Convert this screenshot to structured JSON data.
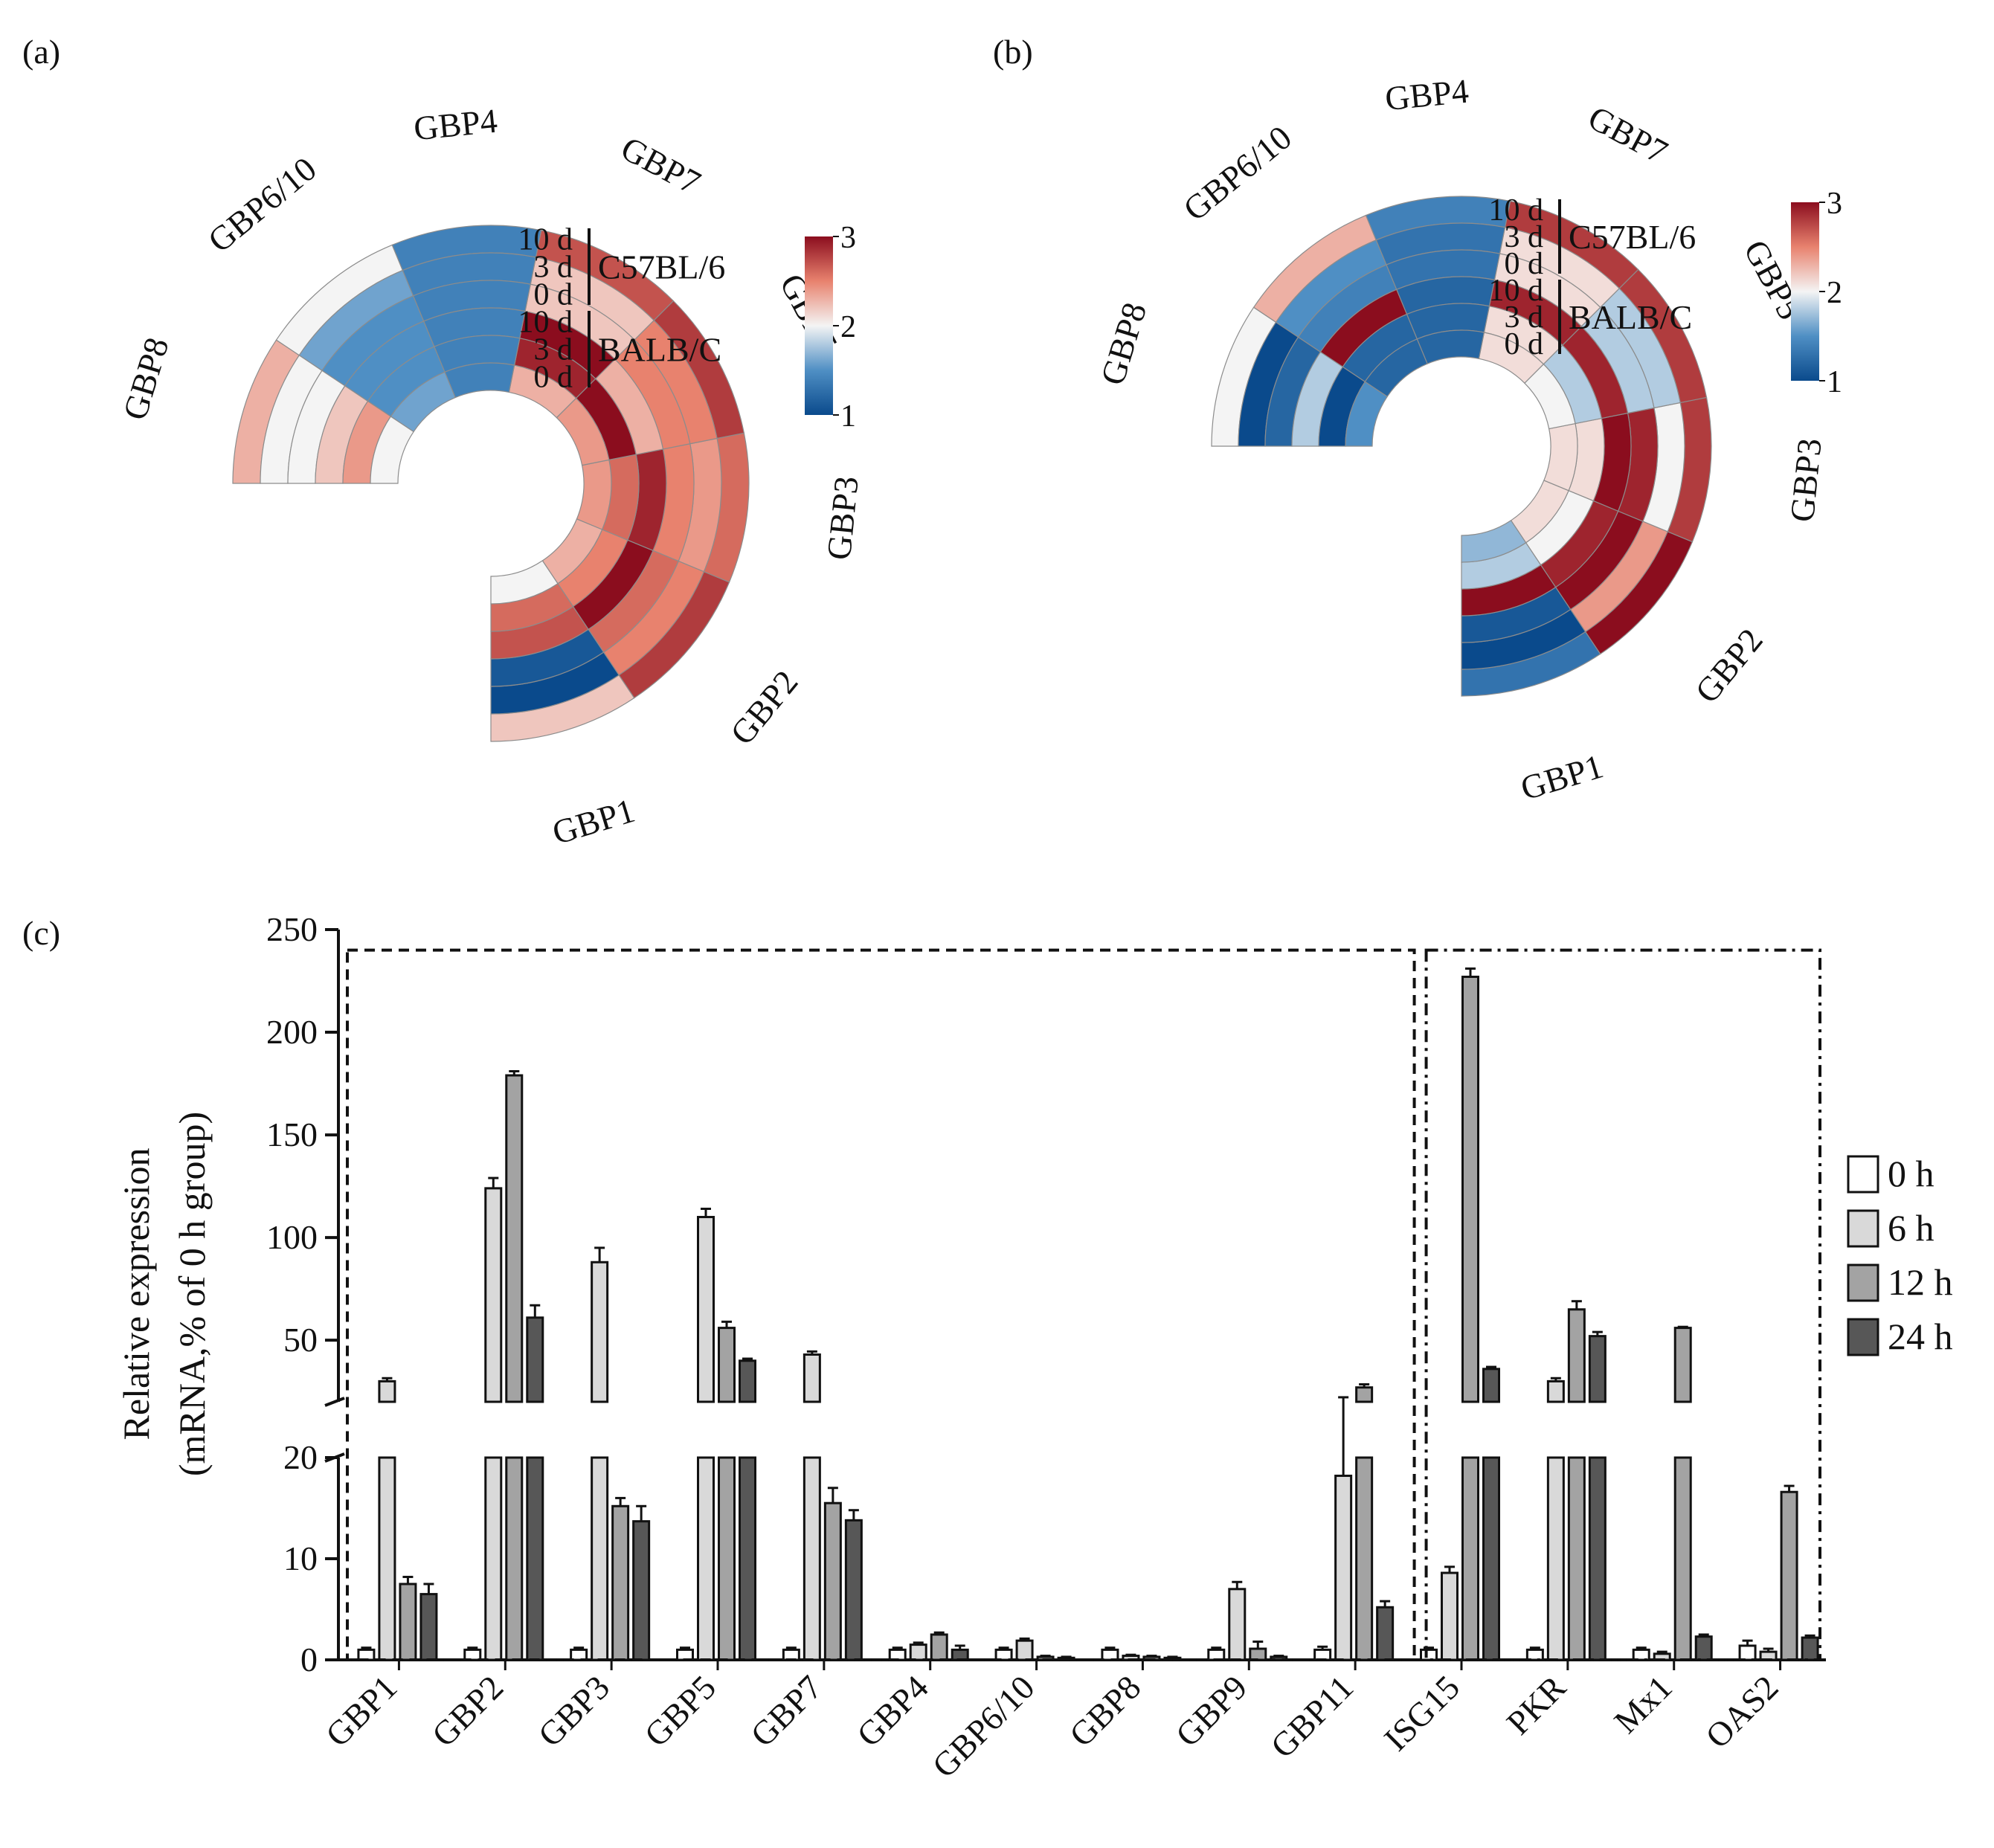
{
  "panels": {
    "a": {
      "label": "(a)"
    },
    "b": {
      "label": "(b)"
    },
    "c": {
      "label": "(c)"
    }
  },
  "colors": {
    "scale_low": "#0a4a8c",
    "scale_mid": "#f4f4f4",
    "scale_high": "#8b0d1e",
    "bar_0h": "#ffffff",
    "bar_6h": "#d9d9d9",
    "bar_12h": "#a3a3a3",
    "bar_24h": "#575757"
  },
  "chart_data": [
    {
      "panel": "a",
      "type": "heatmap",
      "subtype": "circular",
      "title": "",
      "genes": [
        "GBP1",
        "GBP2",
        "GBP3",
        "GBP5",
        "GBP7",
        "GBP4",
        "GBP6/10",
        "GBP8"
      ],
      "rings": [
        "10 d",
        "3 d",
        "0 d",
        "10 d",
        "3 d",
        "0 d"
      ],
      "groups": [
        {
          "name": "C57BL/6",
          "rings": [
            "10 d",
            "3 d",
            "0 d"
          ]
        },
        {
          "name": "BALB/C",
          "rings": [
            "10 d",
            "3 d",
            "0 d"
          ]
        }
      ],
      "values": [
        [
          2.2,
          2.8,
          2.6,
          2.8,
          2.7,
          1.4,
          2.0,
          2.3
        ],
        [
          1.0,
          2.5,
          2.4,
          2.5,
          2.2,
          1.4,
          1.6,
          2.0
        ],
        [
          1.1,
          2.6,
          2.5,
          2.5,
          2.2,
          1.4,
          1.5,
          2.0
        ],
        [
          2.7,
          3.2,
          2.9,
          2.3,
          3.0,
          1.4,
          1.5,
          2.2
        ],
        [
          2.6,
          2.5,
          2.6,
          3.3,
          2.9,
          1.4,
          1.5,
          2.4
        ],
        [
          2.0,
          2.3,
          2.4,
          2.4,
          2.3,
          1.4,
          1.6,
          2.0
        ]
      ],
      "colorbar": {
        "ticks": [
          "1",
          "2",
          "3"
        ],
        "range": [
          1,
          3
        ]
      }
    },
    {
      "panel": "b",
      "type": "heatmap",
      "subtype": "circular",
      "title": "",
      "genes": [
        "GBP1",
        "GBP2",
        "GBP3",
        "GBP5",
        "GBP7",
        "GBP4",
        "GBP6/10",
        "GBP8"
      ],
      "rings": [
        "10 d",
        "3 d",
        "0 d",
        "10 d",
        "3 d",
        "0 d"
      ],
      "groups": [
        {
          "name": "C57BL/6",
          "rings": [
            "10 d",
            "3 d",
            "0 d"
          ]
        },
        {
          "name": "BALB/C",
          "rings": [
            "10 d",
            "3 d",
            "0 d"
          ]
        }
      ],
      "values": [
        [
          1.3,
          3.4,
          2.8,
          2.8,
          2.8,
          1.4,
          2.3,
          2.0
        ],
        [
          1.0,
          2.4,
          2.0,
          1.8,
          2.1,
          1.3,
          1.5,
          1.0
        ],
        [
          1.1,
          3.0,
          2.9,
          1.8,
          2.1,
          1.3,
          1.4,
          1.2
        ],
        [
          3.1,
          2.9,
          3.0,
          2.9,
          2.9,
          1.2,
          3.2,
          1.8
        ],
        [
          1.8,
          2.0,
          2.1,
          1.8,
          2.1,
          1.2,
          1.2,
          1.0
        ],
        [
          1.7,
          2.1,
          2.1,
          2.0,
          2.1,
          1.2,
          1.2,
          1.5
        ]
      ],
      "colorbar": {
        "ticks": [
          "1",
          "2",
          "3"
        ],
        "range": [
          1,
          3
        ]
      }
    },
    {
      "panel": "c",
      "type": "bar",
      "title": "",
      "xlabel": "",
      "ylabel_line1": "Relative  expression",
      "ylabel_line2": "(mRNA,% of 0 h group)",
      "categories": [
        "GBP1",
        "GBP2",
        "GBP3",
        "GBP5",
        "GBP7",
        "GBP4",
        "GBP6/10",
        "GBP8",
        "GBP9",
        "GBP11",
        "ISG15",
        "PKR",
        "Mx1",
        "OAS2"
      ],
      "series": [
        {
          "name": "0 h",
          "values": [
            1,
            1,
            1,
            1,
            1,
            1,
            1,
            1,
            1,
            1,
            1,
            1,
            1,
            1.4
          ]
        },
        {
          "name": "6 h",
          "values": [
            30,
            124,
            88,
            110,
            43,
            1.5,
            1.9,
            0.4,
            7,
            18.2,
            8.6,
            30,
            0.6,
            0.8
          ]
        },
        {
          "name": "12 h",
          "values": [
            7.5,
            179,
            15.2,
            56,
            15.5,
            2.5,
            0.3,
            0.3,
            1.1,
            27,
            227,
            65,
            56,
            16.6
          ]
        },
        {
          "name": "24 h",
          "values": [
            6.5,
            61,
            13.7,
            40,
            13.8,
            1.0,
            0.2,
            0.2,
            0.3,
            5.2,
            36,
            52,
            2.3,
            2.2
          ]
        }
      ],
      "errors": [
        [
          0.2,
          0.2,
          0.2,
          0.2,
          0.2,
          0.2,
          0.2,
          0.2,
          0.2,
          0.3,
          0.2,
          0.2,
          0.2,
          0.5
        ],
        [
          1.5,
          5,
          7,
          4,
          1.5,
          0.2,
          0.2,
          0.1,
          0.7,
          4,
          0.6,
          1.5,
          0.2,
          0.3
        ],
        [
          0.7,
          2,
          0.8,
          3,
          1.5,
          0.2,
          0.1,
          0.1,
          0.7,
          1.5,
          4,
          4,
          0.5,
          0.6
        ],
        [
          1.0,
          6,
          1.5,
          1,
          1.0,
          0.4,
          0.1,
          0.1,
          0.1,
          0.6,
          1,
          2,
          0.2,
          0.2
        ]
      ],
      "y_axis": {
        "broken": true,
        "lower_range": [
          0,
          20
        ],
        "upper_range": [
          20,
          250
        ],
        "lower_ticks": [
          "0",
          "10",
          "20"
        ],
        "upper_ticks": [
          "50",
          "100",
          "150",
          "200",
          "250"
        ]
      },
      "boxes": [
        {
          "style": "dashed",
          "categories": [
            "GBP1",
            "GBP11"
          ]
        },
        {
          "style": "dash-dot",
          "categories": [
            "ISG15",
            "OAS2"
          ]
        }
      ],
      "legend": {
        "position": "right",
        "items": [
          "0 h",
          "6 h",
          "12 h",
          "24 h"
        ]
      }
    }
  ]
}
